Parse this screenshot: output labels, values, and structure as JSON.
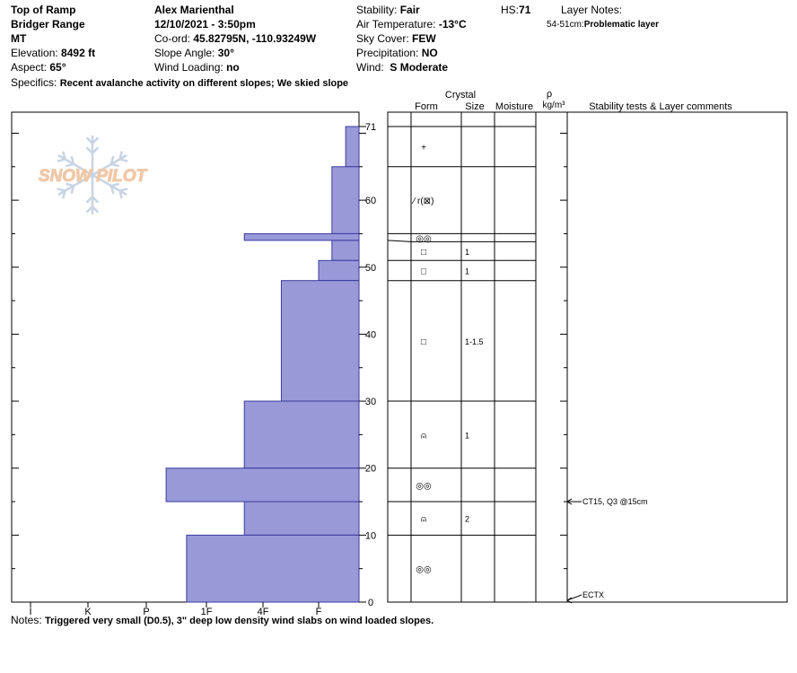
{
  "site": {
    "location": "Top of Ramp",
    "range": "Bridger Range",
    "state": "MT",
    "elevation_label": "Elevation:",
    "elevation": "8492 ft",
    "aspect_label": "Aspect:",
    "aspect": "65°"
  },
  "observer": {
    "name": "Alex Marienthal",
    "datetime": "12/10/2021 - 3:50pm",
    "coord_label": "Co-ord:",
    "coord": "45.82795N, -110.93249W",
    "slope_label": "Slope Angle:",
    "slope": "30°",
    "wind_loading_label": "Wind Loading:",
    "wind_loading": "no"
  },
  "conditions": {
    "stability_label": "Stability:",
    "stability": "Fair",
    "air_temp_label": "Air Temperature:",
    "air_temp": "-13°C",
    "sky_label": "Sky Cover:",
    "sky": "FEW",
    "precip_label": "Precipitation:",
    "precip": "NO",
    "wind_label": "Wind:",
    "wind": "S Moderate",
    "hs_label": "HS:",
    "hs": "71"
  },
  "layer_notes": {
    "title": "Layer Notes:",
    "range": "54-51cm:",
    "text": "Problematic layer"
  },
  "specifics": {
    "label": "Specifics:",
    "text": "Recent avalanche activity on different slopes; We skied slope"
  },
  "notes": {
    "label": "Notes:",
    "text": "Triggered very small (D0.5), 3\" deep low density wind slabs on wind loaded slopes."
  },
  "logo_text": "SNOW PILOT",
  "table_headers": {
    "crystal": "Crystal",
    "form": "Form",
    "size": "Size",
    "moisture": "Moisture",
    "rho": "ρ",
    "density_unit": "kg/m³",
    "comments": "Stability tests & Layer comments"
  },
  "stability_tests": [
    {
      "depth": 15,
      "text": "CT15, Q3 @15cm"
    },
    {
      "depth": 0,
      "text": "ECTX"
    }
  ],
  "colors": {
    "bar_fill": "#9999d8",
    "bar_stroke": "#3a3aa0",
    "logo": "#f0c8a8",
    "logo_snowflake": "#c8d4e4"
  },
  "chart_data": {
    "type": "bar",
    "orientation": "horizontal",
    "title": "",
    "xlabel": "",
    "ylabel": "",
    "x_categories": [
      "I",
      "K",
      "P",
      "1F",
      "4F",
      "F"
    ],
    "x_reversed": true,
    "ylim": [
      0,
      71
    ],
    "y_ticks": [
      0,
      10,
      20,
      30,
      40,
      50,
      60,
      71
    ],
    "layers": [
      {
        "top": 71,
        "bottom": 65,
        "hardness": 0.33,
        "form": "+",
        "size": ""
      },
      {
        "top": 65,
        "bottom": 55,
        "hardness": 0.67,
        "form": "⁄ r(⊠)",
        "size": ""
      },
      {
        "top": 55,
        "bottom": 54,
        "hardness": 2.33,
        "form": "◎◎",
        "size": ""
      },
      {
        "top": 54,
        "bottom": 51,
        "hardness": 0.67,
        "form": "□",
        "size": "1"
      },
      {
        "top": 51,
        "bottom": 48,
        "hardness": 1.0,
        "form": "□",
        "size": "1"
      },
      {
        "top": 48,
        "bottom": 30,
        "hardness": 1.67,
        "form": "□",
        "size": "1-1.5"
      },
      {
        "top": 30,
        "bottom": 20,
        "hardness": 2.33,
        "form": "⍝",
        "size": "1"
      },
      {
        "top": 20,
        "bottom": 15,
        "hardness": 3.67,
        "form": "◎◎",
        "size": ""
      },
      {
        "top": 15,
        "bottom": 10,
        "hardness": 2.33,
        "form": "⍝",
        "size": "2"
      },
      {
        "top": 10,
        "bottom": 0,
        "hardness": 3.33,
        "form": "◎◎",
        "size": ""
      }
    ]
  }
}
